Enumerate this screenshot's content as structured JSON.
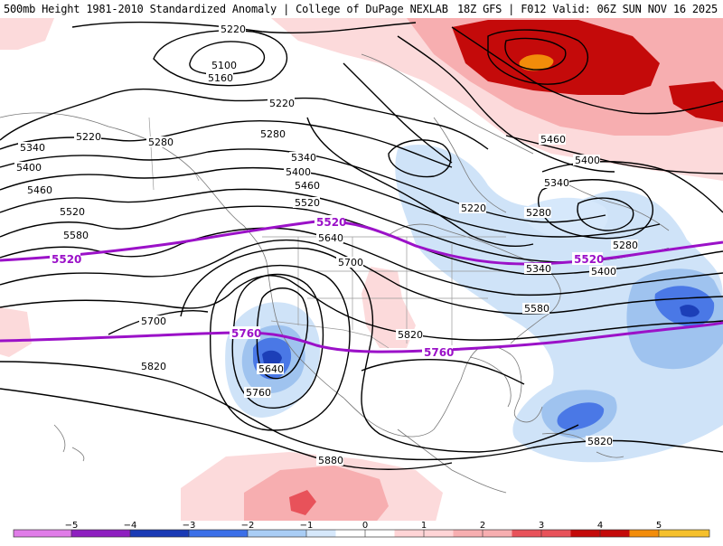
{
  "header": {
    "title_left": "500mb Height 1981-2010 Standardized Anomaly | College of DuPage NEXLAB",
    "title_right": "18Z GFS | F012 Valid: 06Z SUN NOV 16 2025"
  },
  "contours": {
    "heights": [
      "5220",
      "5100",
      "5160",
      "5220",
      "5280",
      "5220",
      "5340",
      "5400",
      "5460",
      "5520",
      "5580",
      "5280",
      "5340",
      "5400",
      "5460",
      "5520",
      "5640",
      "5700",
      "5220",
      "5280",
      "5280",
      "5340",
      "5400",
      "5460",
      "5400",
      "5340",
      "5580",
      "5700",
      "5820",
      "5640",
      "5760",
      "5820",
      "5880",
      "5820"
    ],
    "reference_lines": [
      "5520",
      "5520",
      "5520",
      "5760",
      "5760"
    ]
  },
  "colorbar": {
    "ticks": [
      "−5",
      "−4",
      "−3",
      "−2",
      "−1",
      "0",
      "1",
      "2",
      "3",
      "4",
      "5"
    ],
    "colors": [
      "#e07ce8",
      "#8e1fc0",
      "#1a3ab5",
      "#3b6fe8",
      "#a9cdf5",
      "#d6e8fb",
      "#ffffff",
      "#ffd4d6",
      "#f7aeb0",
      "#e8525a",
      "#c40a0a",
      "#f28c0a",
      "#f5c02c"
    ]
  },
  "anomaly_colors": {
    "light_blue": "#cfe3f8",
    "mid_blue": "#9fc3ef",
    "blue": "#4a78e6",
    "dark_blue": "#1c3fb8",
    "light_red": "#fcdadb",
    "mid_red": "#f7aeb0",
    "red": "#e8525a",
    "dark_red": "#c40a0a",
    "orange": "#f28c0a"
  },
  "reference_line_color": "#9b11c8"
}
